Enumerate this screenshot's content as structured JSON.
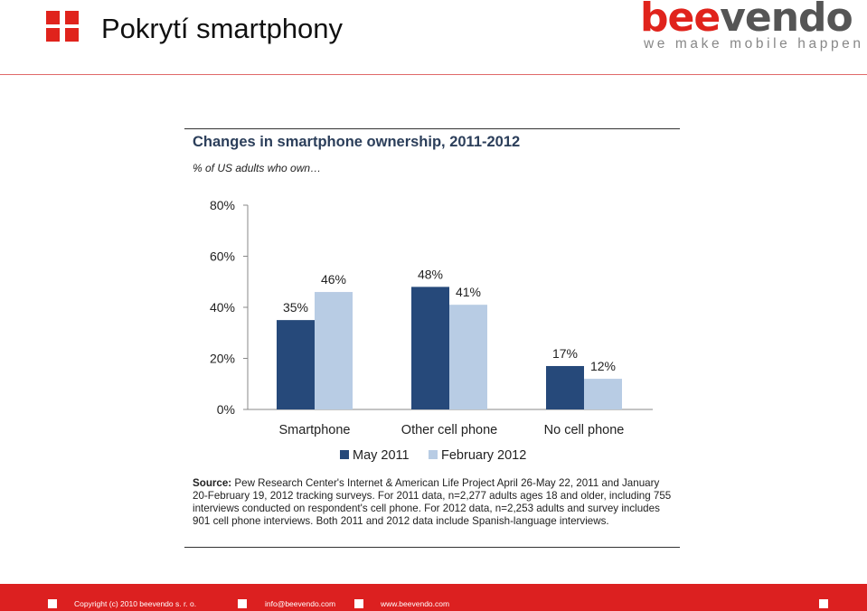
{
  "slide": {
    "title": "Pokrytí smartphony",
    "brand_part1": "bee",
    "brand_part2": "vendo",
    "tagline": "we make mobile happen"
  },
  "chart_data": {
    "type": "bar",
    "title": "Changes in smartphone ownership, 2011-2012",
    "subtitle": "% of US adults who own…",
    "categories": [
      "Smartphone",
      "Other cell phone",
      "No cell phone"
    ],
    "series": [
      {
        "name": "May 2011",
        "values": [
          35,
          48,
          17
        ],
        "labels": [
          "35%",
          "48%",
          "17%"
        ],
        "color": "#26497a"
      },
      {
        "name": "February 2012",
        "values": [
          46,
          41,
          12
        ],
        "labels": [
          "46%",
          "41%",
          "12%"
        ],
        "color": "#b8cce4"
      }
    ],
    "yticks": [
      "0%",
      "20%",
      "40%",
      "60%",
      "80%"
    ],
    "ytick_values": [
      0,
      20,
      40,
      60,
      80
    ],
    "ylim": [
      0,
      80
    ],
    "legend": "bottom",
    "source_label": "Source:",
    "source_text": " Pew Research Center's Internet & American Life Project April 26-May 22, 2011 and January 20-February 19, 2012 tracking surveys. For 2011 data, n=2,277 adults ages 18 and older, including 755 interviews conducted on respondent's cell phone. For 2012 data, n=2,253 adults and survey includes 901 cell phone interviews. Both 2011 and 2012 data include Spanish-language interviews."
  },
  "footer": {
    "copyright": "Copyright (c) 2010 beevendo s. r. o.",
    "email": "info@beevendo.com",
    "website": "www.beevendo.com"
  }
}
